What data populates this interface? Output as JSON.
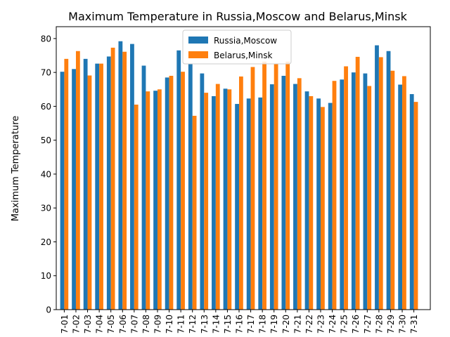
{
  "chart_data": {
    "type": "bar",
    "title": "Maximum Temperature in Russia,Moscow and Belarus,Minsk",
    "xlabel": "",
    "ylabel": "Maximum Temperature",
    "ylim": [
      0,
      83.5
    ],
    "yticks": [
      "0",
      "10",
      "20",
      "30",
      "40",
      "50",
      "60",
      "70",
      "80"
    ],
    "grid": false,
    "legend_position": "top-center",
    "categories": [
      "7-01",
      "7-02",
      "7-03",
      "7-04",
      "7-05",
      "7-06",
      "7-07",
      "7-08",
      "7-09",
      "7-10",
      "7-11",
      "7-12",
      "7-13",
      "7-14",
      "7-15",
      "7-16",
      "7-17",
      "7-18",
      "7-19",
      "7-20",
      "7-21",
      "7-22",
      "7-23",
      "7-24",
      "7-25",
      "7-26",
      "7-27",
      "7-28",
      "7-29",
      "7-30",
      "7-31"
    ],
    "series": [
      {
        "name": "Russia,Moscow",
        "color": "#1f77b4",
        "values": [
          70.2,
          71.0,
          74.0,
          72.6,
          74.7,
          79.2,
          78.4,
          72.0,
          64.6,
          68.5,
          76.5,
          72.5,
          69.7,
          63.0,
          65.2,
          60.7,
          62.3,
          62.6,
          66.5,
          69.0,
          66.6,
          64.4,
          62.3,
          61.0,
          67.9,
          70.0,
          69.7,
          78.0,
          76.3,
          66.4,
          63.6
        ]
      },
      {
        "name": "Belarus,Minsk",
        "color": "#ff7f0e",
        "values": [
          74.0,
          76.3,
          69.1,
          72.6,
          77.3,
          76.1,
          60.5,
          64.4,
          65.0,
          69.0,
          70.2,
          57.2,
          64.0,
          66.6,
          65.0,
          68.8,
          71.6,
          73.2,
          72.5,
          73.2,
          68.3,
          63.0,
          59.8,
          67.5,
          71.8,
          74.6,
          66.0,
          74.5,
          70.5,
          68.9,
          61.3
        ]
      }
    ]
  }
}
